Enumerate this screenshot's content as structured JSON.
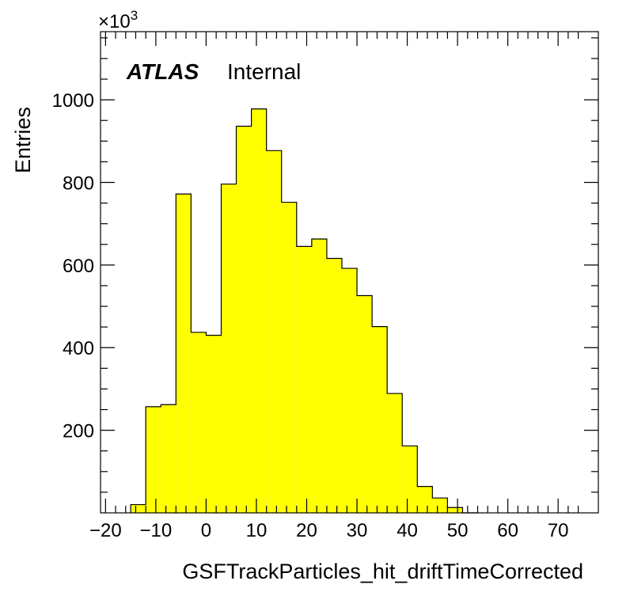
{
  "chart_data": {
    "type": "histogram",
    "xlabel": "GSFTrackParticles_hit_driftTimeCorrected",
    "ylabel": "Entries",
    "y_multiplier_base": "×10",
    "y_multiplier_exp": "3",
    "xlim": [
      -21,
      78
    ],
    "ylim": [
      0,
      1165
    ],
    "x_ticks": [
      -20,
      -10,
      0,
      10,
      20,
      30,
      40,
      50,
      60,
      70
    ],
    "x_tick_labels": [
      "−20",
      "−10",
      "0",
      "10",
      "20",
      "30",
      "40",
      "50",
      "60",
      "70"
    ],
    "y_ticks": [
      200,
      400,
      600,
      800,
      1000
    ],
    "y_tick_labels": [
      "200",
      "400",
      "600",
      "800",
      "1000"
    ],
    "bin_edges": [
      -15,
      -12,
      -9,
      -6,
      -3,
      0,
      3,
      6,
      9,
      12,
      15,
      18,
      21,
      24,
      27,
      30,
      33,
      36,
      39,
      42,
      45,
      48,
      51,
      54
    ],
    "values": [
      20,
      257,
      262,
      772,
      437,
      430,
      796,
      936,
      978,
      877,
      752,
      645,
      663,
      616,
      592,
      526,
      451,
      289,
      162,
      64,
      36,
      13,
      0
    ],
    "fill_color": "#ffff00",
    "line_color": "#000000",
    "grid": false,
    "legend": "none"
  },
  "label": {
    "experiment": "ATLAS",
    "status": "Internal"
  }
}
